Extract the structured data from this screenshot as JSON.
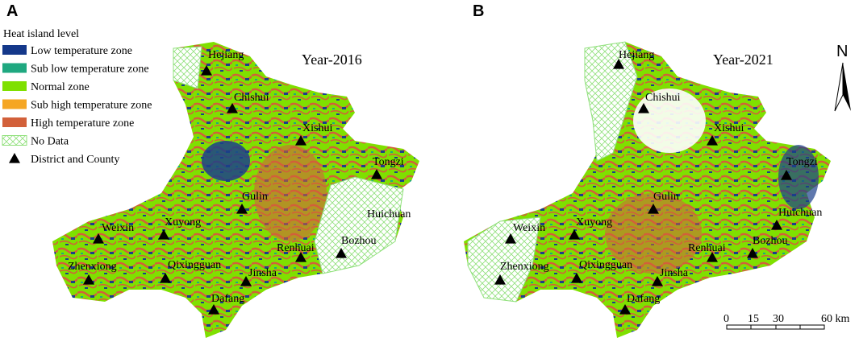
{
  "panels": [
    {
      "label": "A",
      "year": "Year-2016",
      "places": [
        "Hejiang",
        "Chishui",
        "Xishui",
        "Tongzi",
        "Gulin",
        "Huichuan",
        "Weixin",
        "Xuyong",
        "Renhuai",
        "Bozhou",
        "Zhenxiong",
        "Qixingguan",
        "Jinsha",
        "Dafang"
      ]
    },
    {
      "label": "B",
      "year": "Year-2021",
      "places": [
        "Hejiang",
        "Chishui",
        "Xishui",
        "Tongzi",
        "Gulin",
        "Huichuan",
        "Weixin",
        "Xuyong",
        "Renhuai",
        "Bozhou",
        "Zhenxiong",
        "Qixingguan",
        "Jinsha",
        "Dafang"
      ]
    }
  ],
  "legend": {
    "title": "Heat island level",
    "items": [
      "Low temperature zone",
      "Sub low temperature zone",
      "Normal zone",
      "Sub high temperature zone",
      "High temperature zone",
      "No Data",
      "District and County"
    ]
  },
  "north": "N",
  "scale_bar": [
    "0",
    "15",
    "30",
    "60 km"
  ]
}
